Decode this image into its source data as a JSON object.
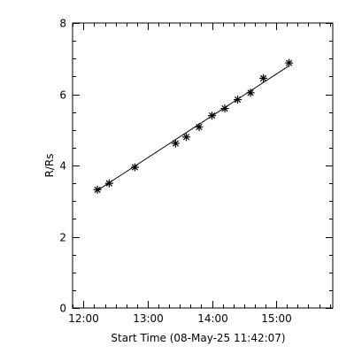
{
  "chart_data": {
    "type": "scatter",
    "title": "",
    "xlabel": "Start Time (08-May-25 11:42:07)",
    "ylabel": "R/Rs",
    "x_unit": "hours",
    "xlim": [
      11.83,
      15.88
    ],
    "ylim": [
      0,
      8
    ],
    "x_ticks": [
      {
        "value": 12,
        "label": "12:00"
      },
      {
        "value": 13,
        "label": "13:00"
      },
      {
        "value": 14,
        "label": "14:00"
      },
      {
        "value": 15,
        "label": "15:00"
      }
    ],
    "y_ticks": [
      {
        "value": 0,
        "label": "0"
      },
      {
        "value": 2,
        "label": "2"
      },
      {
        "value": 4,
        "label": "4"
      },
      {
        "value": 6,
        "label": "6"
      },
      {
        "value": 8,
        "label": "8"
      }
    ],
    "series": [
      {
        "marker": "asterisk",
        "points": [
          {
            "x": "12:13",
            "y": 3.32
          },
          {
            "x": "12:24",
            "y": 3.5
          },
          {
            "x": "12:48",
            "y": 3.95
          },
          {
            "x": "13:26",
            "y": 4.62
          },
          {
            "x": "13:36",
            "y": 4.8
          },
          {
            "x": "13:48",
            "y": 5.08
          },
          {
            "x": "14:00",
            "y": 5.4
          },
          {
            "x": "14:12",
            "y": 5.6
          },
          {
            "x": "14:24",
            "y": 5.85
          },
          {
            "x": "14:36",
            "y": 6.04
          },
          {
            "x": "14:48",
            "y": 6.45
          },
          {
            "x": "15:12",
            "y": 6.88
          }
        ]
      }
    ],
    "fit_line": {
      "from": {
        "x": "12:13",
        "y": 3.3
      },
      "to": {
        "x": "15:12",
        "y": 6.8
      }
    },
    "grid": false,
    "colors": {
      "foreground": "#000000",
      "background": "#ffffff"
    }
  }
}
